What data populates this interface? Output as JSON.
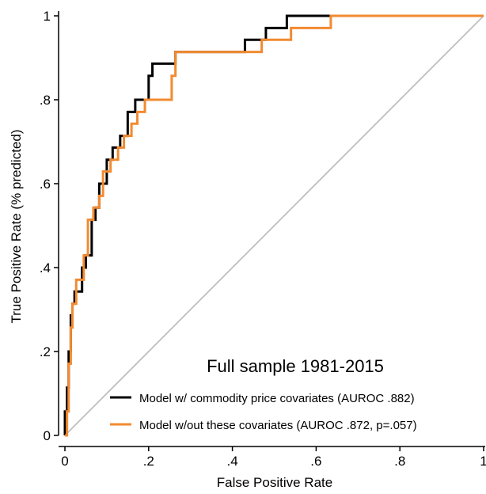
{
  "chart_data": {
    "type": "line",
    "title": "",
    "xlabel": "False Positive Rate",
    "ylabel": "True Positive Rate (% predicted)",
    "xlim": [
      0,
      1
    ],
    "ylim": [
      0,
      1
    ],
    "x_ticks": [
      {
        "value": 0,
        "label": "0"
      },
      {
        "value": 0.2,
        "label": ".2"
      },
      {
        "value": 0.4,
        "label": ".4"
      },
      {
        "value": 0.6,
        "label": ".6"
      },
      {
        "value": 0.8,
        "label": ".8"
      },
      {
        "value": 1,
        "label": "1"
      }
    ],
    "y_ticks": [
      {
        "value": 0,
        "label": "0"
      },
      {
        "value": 0.2,
        "label": ".2"
      },
      {
        "value": 0.4,
        "label": ".4"
      },
      {
        "value": 0.6,
        "label": ".6"
      },
      {
        "value": 0.8,
        "label": ".8"
      },
      {
        "value": 1,
        "label": "1"
      }
    ],
    "grid": false,
    "annotation": "Full sample 1981-2015",
    "legend_position": "bottom-right",
    "series": [
      {
        "name": "Model w/ commodity price covariates (AUROC .882)",
        "color": "#000000",
        "x": [
          0,
          0,
          0.005,
          0.005,
          0.009,
          0.009,
          0.014,
          0.014,
          0.018,
          0.018,
          0.023,
          0.023,
          0.041,
          0.041,
          0.05,
          0.05,
          0.064,
          0.064,
          0.073,
          0.073,
          0.082,
          0.082,
          0.1,
          0.1,
          0.114,
          0.114,
          0.132,
          0.132,
          0.15,
          0.15,
          0.168,
          0.168,
          0.2,
          0.2,
          0.209,
          0.209,
          0.218,
          0.218,
          0.25,
          0.25,
          0.264,
          0.264,
          0.43,
          0.43,
          0.48,
          0.48,
          0.53,
          0.53,
          1
        ],
        "y": [
          0,
          0.057,
          0.057,
          0.114,
          0.114,
          0.2,
          0.2,
          0.286,
          0.286,
          0.314,
          0.314,
          0.343,
          0.343,
          0.4,
          0.4,
          0.429,
          0.429,
          0.514,
          0.514,
          0.543,
          0.543,
          0.6,
          0.6,
          0.657,
          0.657,
          0.686,
          0.686,
          0.714,
          0.714,
          0.771,
          0.771,
          0.8,
          0.8,
          0.857,
          0.857,
          0.886,
          0.886,
          0.886,
          0.886,
          0.886,
          0.886,
          0.914,
          0.914,
          0.943,
          0.943,
          0.971,
          0.971,
          1,
          1
        ]
      },
      {
        "name": "Model w/out these covariates (AUROC .872, p=.057)",
        "color": "#f28a30",
        "x": [
          0,
          0.005,
          0.005,
          0.009,
          0.009,
          0.014,
          0.014,
          0.018,
          0.018,
          0.027,
          0.027,
          0.045,
          0.045,
          0.055,
          0.055,
          0.068,
          0.068,
          0.082,
          0.082,
          0.091,
          0.091,
          0.109,
          0.109,
          0.127,
          0.127,
          0.141,
          0.141,
          0.159,
          0.159,
          0.173,
          0.173,
          0.191,
          0.191,
          0.255,
          0.255,
          0.264,
          0.264,
          0.47,
          0.47,
          0.54,
          0.54,
          0.635,
          0.635,
          1
        ],
        "y": [
          0,
          0,
          0.057,
          0.057,
          0.171,
          0.171,
          0.257,
          0.257,
          0.314,
          0.314,
          0.371,
          0.371,
          0.429,
          0.429,
          0.514,
          0.514,
          0.543,
          0.543,
          0.571,
          0.571,
          0.629,
          0.629,
          0.657,
          0.657,
          0.686,
          0.686,
          0.714,
          0.714,
          0.743,
          0.743,
          0.771,
          0.771,
          0.8,
          0.8,
          0.857,
          0.857,
          0.914,
          0.914,
          0.943,
          0.943,
          0.971,
          0.971,
          1,
          1
        ]
      },
      {
        "name": "",
        "color": "#bfbfbf",
        "x": [
          0,
          1
        ],
        "y": [
          0,
          1
        ]
      }
    ]
  }
}
